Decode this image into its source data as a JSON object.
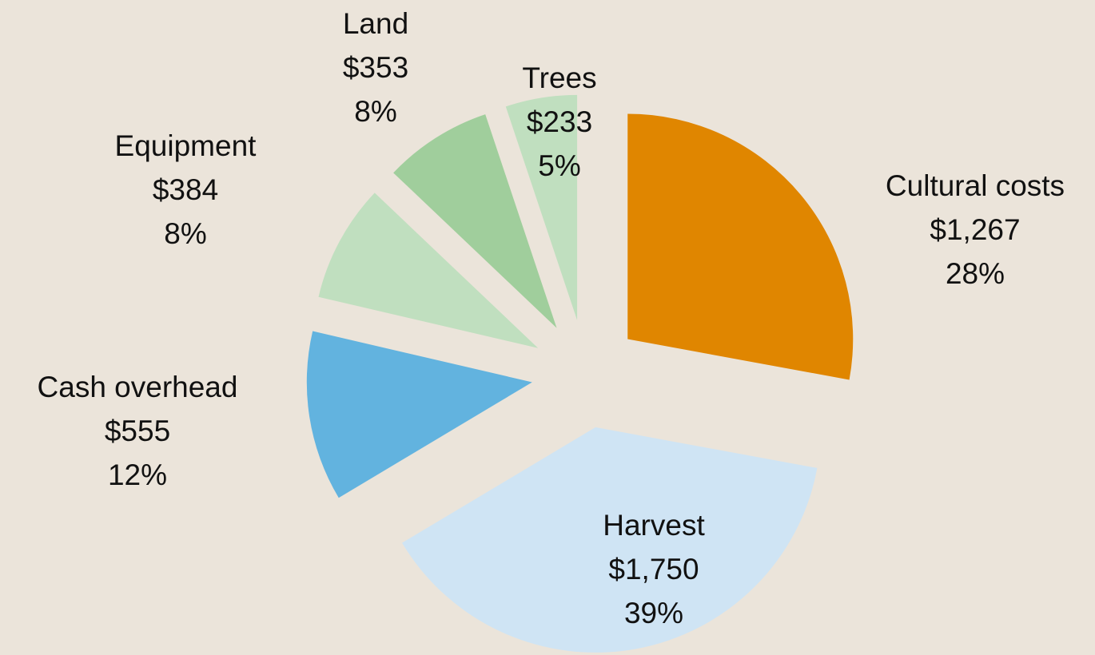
{
  "chart_data": {
    "type": "pie",
    "categories": [
      "Cultural costs",
      "Harvest",
      "Cash overhead",
      "Equipment",
      "Land",
      "Trees"
    ],
    "values": [
      1267,
      1750,
      555,
      384,
      353,
      233
    ],
    "value_labels": [
      "$1,267",
      "$1,750",
      "$555",
      "$384",
      "$353",
      "$233"
    ],
    "percent_labels": [
      "28%",
      "39%",
      "12%",
      "8%",
      "8%",
      "5%"
    ],
    "colors": [
      "#e08600",
      "#cfe4f4",
      "#62b3df",
      "#c0dfbf",
      "#a0ce9c",
      "#c0dfbf"
    ]
  }
}
